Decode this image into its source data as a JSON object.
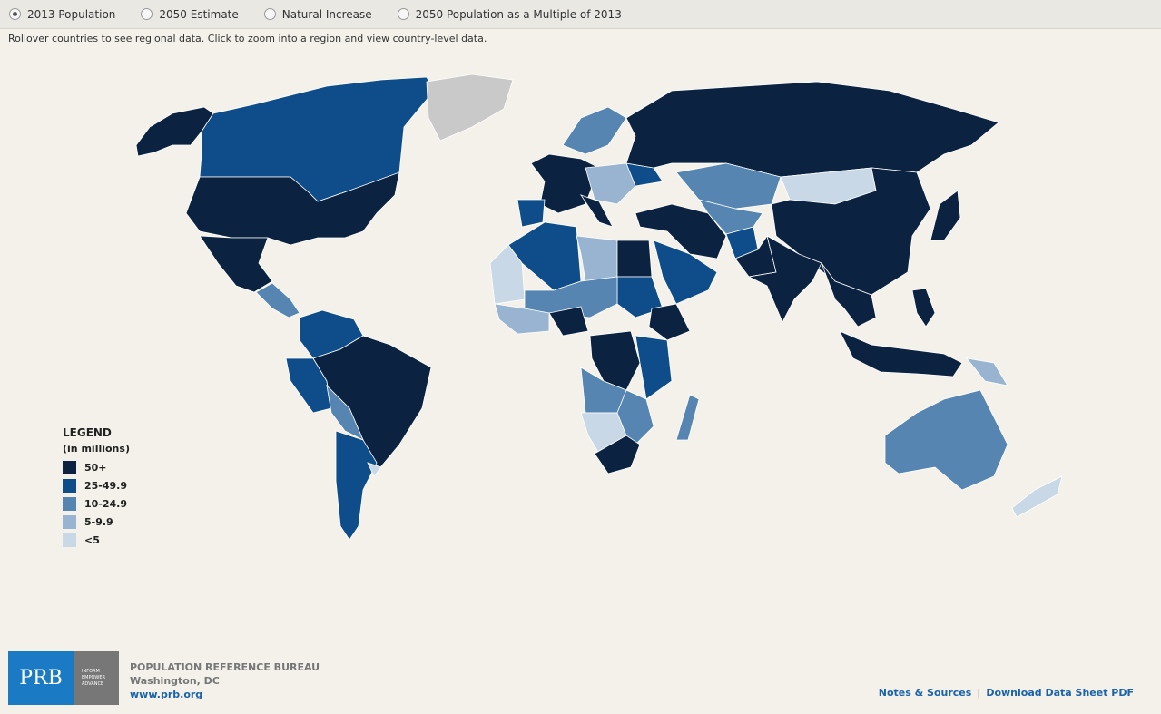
{
  "controls": {
    "options": [
      "2013 Population",
      "2050 Estimate",
      "Natural Increase",
      "2050 Population as a Multiple of 2013"
    ],
    "selected": 0
  },
  "instructions": "Rollover countries to see regional data. Click to zoom into a region and view country-level data.",
  "legend": {
    "title": "LEGEND",
    "subtitle": "(in millions)",
    "items": [
      {
        "label": "50+",
        "color": "#0b2240"
      },
      {
        "label": "25-49.9",
        "color": "#0e4d8a"
      },
      {
        "label": "10-24.9",
        "color": "#5585b0"
      },
      {
        "label": "5-9.9",
        "color": "#98b4d0"
      },
      {
        "label": "<5",
        "color": "#c9d8e6"
      }
    ]
  },
  "footer": {
    "logo": "PRB",
    "tagline": [
      "INFORM",
      "EMPOWER",
      "ADVANCE"
    ],
    "org": "POPULATION REFERENCE BUREAU",
    "city": "Washington, DC",
    "url": "www.prb.org",
    "links": [
      "Notes & Sources",
      "Download Data Sheet PDF"
    ]
  }
}
